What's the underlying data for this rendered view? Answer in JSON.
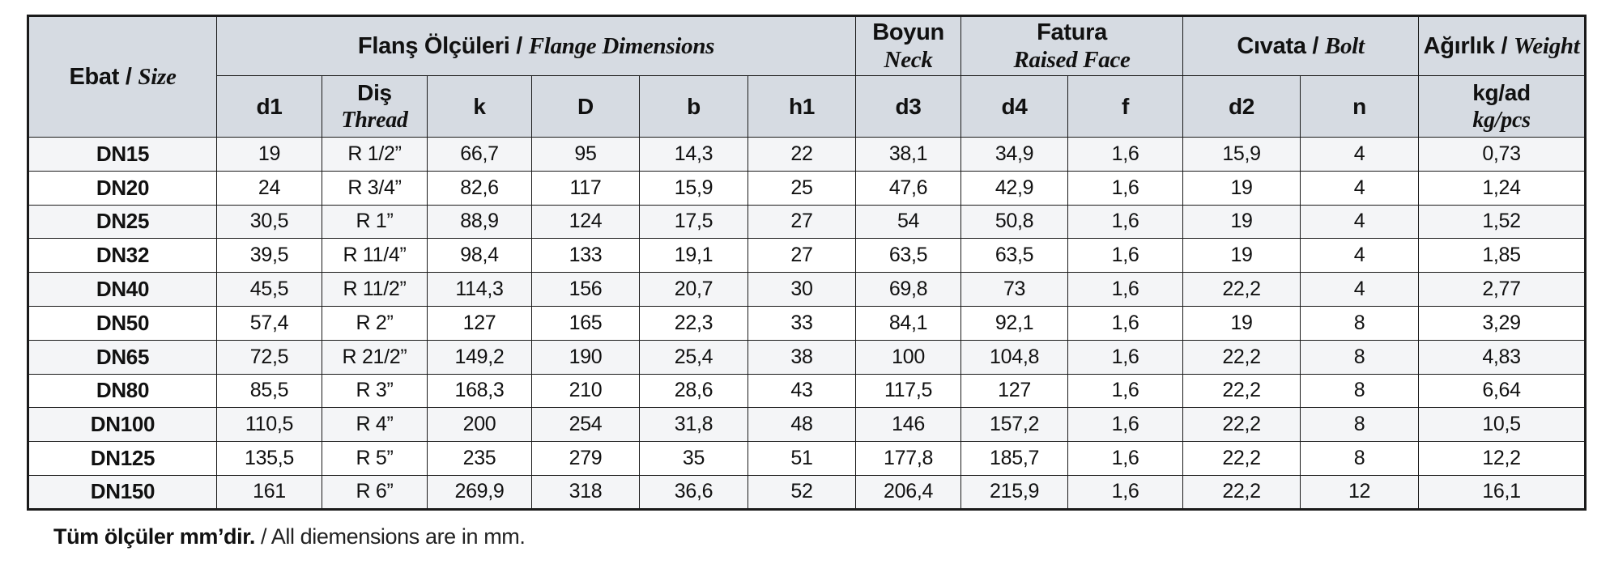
{
  "table": {
    "groups": {
      "size": {
        "tr": "Ebat / ",
        "en": "Size"
      },
      "flange": {
        "tr": "Flanş Ölçüleri / ",
        "en": "Flange Dimensions"
      },
      "neck": {
        "tr": "Boyun",
        "en": "Neck"
      },
      "raised_face": {
        "tr": "Fatura",
        "en": "Raised Face"
      },
      "bolt": {
        "tr": "Cıvata / ",
        "en": "Bolt"
      },
      "weight": {
        "tr": "Ağırlık / ",
        "en": "Weight"
      }
    },
    "sub": {
      "d1": "d1",
      "thread_tr": "Diş",
      "thread_en": "Thread",
      "k": "k",
      "D": "D",
      "b": "b",
      "h1": "h1",
      "d3": "d3",
      "d4": "d4",
      "f": "f",
      "d2": "d2",
      "n": "n",
      "kg_tr": "kg/ad",
      "kg_en": "kg/pcs"
    },
    "col_ids": [
      "size",
      "d1",
      "thread",
      "k",
      "D",
      "b",
      "h1",
      "d3",
      "d4",
      "f",
      "d2",
      "n",
      "kg-ad"
    ],
    "rows": [
      [
        "DN15",
        "19",
        "R 1/2”",
        "66,7",
        "95",
        "14,3",
        "22",
        "38,1",
        "34,9",
        "1,6",
        "15,9",
        "4",
        "0,73"
      ],
      [
        "DN20",
        "24",
        "R 3/4”",
        "82,6",
        "117",
        "15,9",
        "25",
        "47,6",
        "42,9",
        "1,6",
        "19",
        "4",
        "1,24"
      ],
      [
        "DN25",
        "30,5",
        "R 1”",
        "88,9",
        "124",
        "17,5",
        "27",
        "54",
        "50,8",
        "1,6",
        "19",
        "4",
        "1,52"
      ],
      [
        "DN32",
        "39,5",
        "R 11/4”",
        "98,4",
        "133",
        "19,1",
        "27",
        "63,5",
        "63,5",
        "1,6",
        "19",
        "4",
        "1,85"
      ],
      [
        "DN40",
        "45,5",
        "R 11/2”",
        "114,3",
        "156",
        "20,7",
        "30",
        "69,8",
        "73",
        "1,6",
        "22,2",
        "4",
        "2,77"
      ],
      [
        "DN50",
        "57,4",
        "R 2”",
        "127",
        "165",
        "22,3",
        "33",
        "84,1",
        "92,1",
        "1,6",
        "19",
        "8",
        "3,29"
      ],
      [
        "DN65",
        "72,5",
        "R 21/2”",
        "149,2",
        "190",
        "25,4",
        "38",
        "100",
        "104,8",
        "1,6",
        "22,2",
        "8",
        "4,83"
      ],
      [
        "DN80",
        "85,5",
        "R 3”",
        "168,3",
        "210",
        "28,6",
        "43",
        "117,5",
        "127",
        "1,6",
        "22,2",
        "8",
        "6,64"
      ],
      [
        "DN100",
        "110,5",
        "R 4”",
        "200",
        "254",
        "31,8",
        "48",
        "146",
        "157,2",
        "1,6",
        "22,2",
        "8",
        "10,5"
      ],
      [
        "DN125",
        "135,5",
        "R 5”",
        "235",
        "279",
        "35",
        "51",
        "177,8",
        "185,7",
        "1,6",
        "22,2",
        "8",
        "12,2"
      ],
      [
        "DN150",
        "161",
        "R 6”",
        "269,9",
        "318",
        "36,6",
        "52",
        "206,4",
        "215,9",
        "1,6",
        "22,2",
        "12",
        "16,1"
      ]
    ]
  },
  "footer": {
    "tr": "Tüm ölçüler mm’dir.",
    "en": " / All diemensions are in mm."
  },
  "colors": {
    "header_bg": "#d6dbe2",
    "row_alt_bg": "#f4f5f7",
    "border": "#1a1a1a"
  }
}
